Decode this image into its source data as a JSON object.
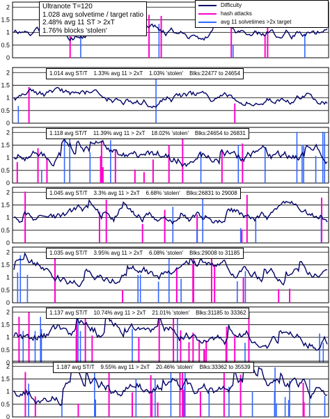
{
  "chart_data": {
    "type": "line",
    "legend": {
      "placement": "top-right",
      "entries": [
        {
          "label": "Difficulty",
          "color": "#000066"
        },
        {
          "label": "hash attacks",
          "color": "#ff00cc"
        },
        {
          "label": "avg 11 solvetimes >2x target",
          "color": "#3366ff"
        }
      ]
    },
    "panels": [
      {
        "yticks": [
          "2",
          "1.5",
          "1",
          "0.5",
          "0"
        ],
        "ylim": [
          0,
          2.2
        ],
        "grid": true,
        "annotation": [
          "Ultranote T=120",
          "1.028 avg solvetime / target ratio",
          "2.48% avg 11 ST > 2xT",
          "1.76% blocks 'stolen'"
        ]
      },
      {
        "yticks": [
          "2",
          "1.5",
          "1",
          "0.5",
          "0"
        ],
        "ylim": [
          0,
          2.2
        ],
        "grid": true,
        "annotation": [
          "1.014 avg ST/T    1.33% avg 11 > 2xT    1.03% 'stolen'    Blks:22477 to 24654"
        ]
      },
      {
        "yticks": [
          "2",
          "1.5",
          "1",
          "0.5",
          "0"
        ],
        "ylim": [
          0,
          2.2
        ],
        "grid": true,
        "annotation": [
          "1.118 avg ST/T    11.39% avg 11 > 2xT    18.02% 'stolen'    Blks:24654 to 26831"
        ]
      },
      {
        "yticks": [
          "2",
          "1.5",
          "1",
          "0.5",
          "0"
        ],
        "ylim": [
          0,
          2.2
        ],
        "grid": true,
        "annotation": [
          "1.045 avg ST/T    3.3% avg 11 > 2xT    6.68% 'stolen'    Blks:26831 to 29008"
        ]
      },
      {
        "yticks": [
          "2",
          "1.5",
          "1",
          "0.5",
          "0"
        ],
        "ylim": [
          0,
          2.2
        ],
        "grid": true,
        "annotation": [
          "1.035 avg ST/T    3.95% avg 11 > 2xT    6.08% 'stolen'    Blks:29008 to 31185"
        ]
      },
      {
        "yticks": [
          "2",
          "1.5",
          "1",
          "0.5",
          "0"
        ],
        "ylim": [
          0,
          2.2
        ],
        "grid": true,
        "annotation": [
          "1.137 avg ST/T    10.74% avg 11 > 2xT    21.01% 'stolen'    Blks:31185 to 33362"
        ]
      },
      {
        "yticks": [
          "2",
          "1.5",
          "1",
          "0.5",
          "0"
        ],
        "ylim": [
          0,
          2.2
        ],
        "grid": true,
        "annotation": [
          "1.187 avg ST/T    9.55% avg 11 > 2xT    20.46% 'stolen'    Blks:33362 to 35539"
        ]
      }
    ]
  }
}
